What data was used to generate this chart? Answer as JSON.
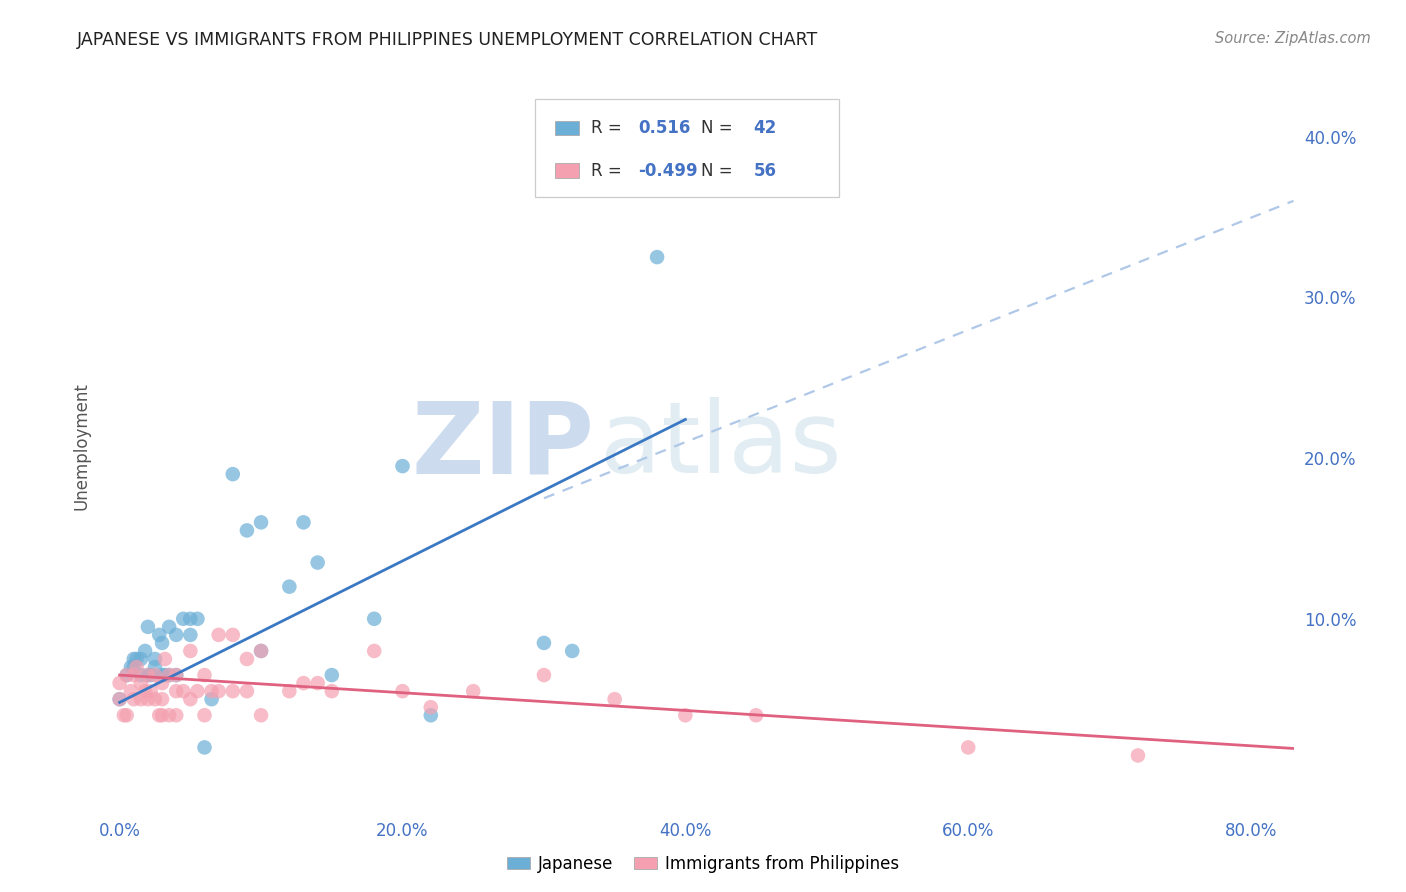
{
  "title": "JAPANESE VS IMMIGRANTS FROM PHILIPPINES UNEMPLOYMENT CORRELATION CHART",
  "source": "Source: ZipAtlas.com",
  "ylabel": "Unemployment",
  "xlabel_ticks": [
    "0.0%",
    "20.0%",
    "40.0%",
    "60.0%",
    "80.0%"
  ],
  "xlabel_vals": [
    0.0,
    0.2,
    0.4,
    0.6,
    0.8
  ],
  "ylabel_ticks_right": [
    "10.0%",
    "20.0%",
    "30.0%",
    "40.0%"
  ],
  "ylabel_vals_right": [
    0.1,
    0.2,
    0.3,
    0.4
  ],
  "xlim": [
    -0.015,
    0.83
  ],
  "ylim": [
    -0.02,
    0.435
  ],
  "japanese_R": 0.516,
  "japanese_N": 42,
  "philippines_R": -0.499,
  "philippines_N": 56,
  "japanese_color": "#6baed6",
  "philippines_color": "#f4a0b0",
  "japanese_line_color": "#3b78c3",
  "philippines_line_color": "#e06080",
  "dashed_line_color": "#b0c8e8",
  "watermark_zip": "ZIP",
  "watermark_atlas": "atlas",
  "japanese_points_x": [
    0.0,
    0.005,
    0.008,
    0.01,
    0.01,
    0.012,
    0.015,
    0.015,
    0.018,
    0.02,
    0.02,
    0.022,
    0.025,
    0.025,
    0.028,
    0.03,
    0.03,
    0.032,
    0.035,
    0.035,
    0.04,
    0.04,
    0.045,
    0.05,
    0.05,
    0.055,
    0.06,
    0.065,
    0.08,
    0.09,
    0.1,
    0.1,
    0.12,
    0.13,
    0.14,
    0.15,
    0.18,
    0.2,
    0.22,
    0.3,
    0.32,
    0.38
  ],
  "japanese_points_y": [
    0.05,
    0.065,
    0.07,
    0.07,
    0.075,
    0.075,
    0.075,
    0.065,
    0.08,
    0.065,
    0.095,
    0.065,
    0.07,
    0.075,
    0.09,
    0.065,
    0.085,
    0.065,
    0.095,
    0.065,
    0.065,
    0.09,
    0.1,
    0.09,
    0.1,
    0.1,
    0.02,
    0.05,
    0.19,
    0.155,
    0.16,
    0.08,
    0.12,
    0.16,
    0.135,
    0.065,
    0.1,
    0.195,
    0.04,
    0.085,
    0.08,
    0.325
  ],
  "philippines_points_x": [
    0.0,
    0.0,
    0.003,
    0.005,
    0.005,
    0.008,
    0.01,
    0.01,
    0.012,
    0.015,
    0.015,
    0.018,
    0.02,
    0.02,
    0.022,
    0.025,
    0.025,
    0.028,
    0.03,
    0.03,
    0.03,
    0.032,
    0.035,
    0.035,
    0.04,
    0.04,
    0.04,
    0.045,
    0.05,
    0.05,
    0.055,
    0.06,
    0.06,
    0.065,
    0.07,
    0.07,
    0.08,
    0.08,
    0.09,
    0.09,
    0.1,
    0.1,
    0.12,
    0.13,
    0.14,
    0.15,
    0.18,
    0.2,
    0.22,
    0.25,
    0.3,
    0.35,
    0.4,
    0.45,
    0.6,
    0.72
  ],
  "philippines_points_y": [
    0.05,
    0.06,
    0.04,
    0.04,
    0.065,
    0.055,
    0.05,
    0.065,
    0.07,
    0.05,
    0.06,
    0.055,
    0.05,
    0.065,
    0.055,
    0.05,
    0.065,
    0.04,
    0.04,
    0.05,
    0.06,
    0.075,
    0.04,
    0.065,
    0.04,
    0.055,
    0.065,
    0.055,
    0.05,
    0.08,
    0.055,
    0.04,
    0.065,
    0.055,
    0.055,
    0.09,
    0.055,
    0.09,
    0.055,
    0.075,
    0.04,
    0.08,
    0.055,
    0.06,
    0.06,
    0.055,
    0.08,
    0.055,
    0.045,
    0.055,
    0.065,
    0.05,
    0.04,
    0.04,
    0.02,
    0.015
  ],
  "japanese_line_intercept": 0.048,
  "japanese_line_slope": 0.44,
  "philippines_line_intercept": 0.065,
  "philippines_line_slope": -0.055,
  "dashed_line_x0": 0.3,
  "dashed_line_x1": 0.83,
  "dashed_line_y0": 0.175,
  "dashed_line_y1": 0.36,
  "background_color": "#ffffff",
  "grid_color": "#dddddd",
  "title_color": "#222222",
  "tick_color": "#4472c4",
  "ylabel_color": "#555555"
}
